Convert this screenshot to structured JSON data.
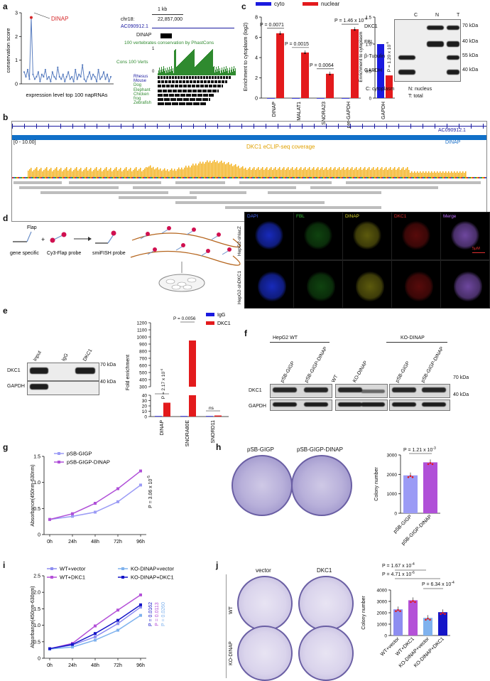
{
  "panels": {
    "a": {
      "label": "a",
      "ylabel": "conservation score",
      "xlabel": "expression level top 100 napRNAs",
      "highlight": "DINAP",
      "browser": {
        "scale": "1 kb",
        "chrom": "chr18:",
        "coord": "22,857,000",
        "gene": "AC090912.1",
        "transcript": "DINAP",
        "track_title": "100 vertebrates conservation by PhastCons",
        "track_name": "Cons 100 Verts",
        "ytick_top": "1",
        "ytick_bottom": "0",
        "species": [
          "Rhesus",
          "Mouse",
          "Dog",
          "Elephant",
          "Chicken",
          "frog",
          "Zebrafish"
        ]
      }
    },
    "b": {
      "label": "b",
      "gene": "AC090912.1",
      "transcript": "DINAP",
      "range": "[0 - 10.00]",
      "track": "DKC1 eCLIP-seq coverage"
    },
    "c": {
      "label": "c",
      "legend": [
        "cyto",
        "nuclear"
      ],
      "ylabel": "Enrichment to cytoplasm (log2)",
      "ylabel2": "Enrichment to cytoplasm",
      "pvalues": [
        "P = 0.0071",
        "P = 0.0015",
        "P = 0.0064",
        "P = 1.46 x 10",
        "P = 1.20 x 10"
      ],
      "pexp": [
        "-4",
        "-5"
      ],
      "blot_lanes": [
        "C",
        "N",
        "T"
      ],
      "blot_rows": [
        "DKC1",
        "FBL",
        "β-Tubulin",
        "GAPDH"
      ],
      "kda": [
        "70 kDa",
        "40 kDa",
        "55 kDa",
        "40 kDa"
      ],
      "notes": [
        "C: cytoplasm",
        "N: nucleus",
        "T: total"
      ]
    },
    "d": {
      "label": "d",
      "flap": "Flap",
      "plus": "+",
      "steps": [
        "gene specific",
        "Cy3-Flap probe",
        "smiFISH probe"
      ],
      "channels": [
        "DAPI",
        "FBL",
        "DINAP",
        "DKC1",
        "Merge"
      ],
      "rows": [
        "HepG2-shlacZ",
        "HepG2-shDKC1"
      ],
      "scale": "5μM"
    },
    "e": {
      "label": "e",
      "blot_lanes": [
        "Input",
        "IgG",
        "DKC1"
      ],
      "blot_rows": [
        "DKC1",
        "GAPDH"
      ],
      "kda": [
        "70 kDa",
        "40 kDa"
      ],
      "legend": [
        "IgG",
        "DKC1"
      ],
      "ylabel": "Fold enrichment",
      "pvalues": [
        "P = 2.17 x 10",
        "P = 0.0056",
        "ns"
      ],
      "pexp": [
        "-4"
      ]
    },
    "f": {
      "label": "f",
      "groups": [
        "HepG2 WT",
        "KO-DINAP"
      ],
      "lanes": [
        "pSB-GIGP",
        "pSB-GIGP-DINAP",
        "WT",
        "KO-DINAP",
        "pSB-GIGP",
        "pSB-GIGP-DINAP"
      ],
      "rows": [
        "DKC1",
        "GAPDH"
      ],
      "kda": [
        "70 kDa",
        "40 kDa"
      ]
    },
    "g": {
      "label": "g",
      "ylabel": "Absorbance(450nm-630nm)",
      "pvalue": "P = 3.06 x 10",
      "pexp": "-5"
    },
    "h": {
      "label": "h",
      "dishes": [
        "pSB-GIGP",
        "pSB-GIGP-DINAP"
      ],
      "ylabel": "Colony number",
      "pvalue": "P = 1.21 x 10",
      "pexp": "-3"
    },
    "i": {
      "label": "i",
      "ylabel": "Absorbance(450nm-630nm)",
      "pvalues": [
        "P = 0.0162",
        "P = 0.0113",
        "P = 0.0260"
      ]
    },
    "j": {
      "label": "j",
      "cols": [
        "vector",
        "DKC1"
      ],
      "rows": [
        "WT",
        "KO-DINAP"
      ],
      "ylabel": "Colony number",
      "pvalues": [
        "P = 1.67 x 10",
        "P = 4.71 x 10",
        "P = 6.34 x 10"
      ],
      "pexp": [
        "-4",
        "-6",
        "-4"
      ]
    }
  },
  "colors": {
    "cyto": "#1a1adf",
    "nuclear": "#e31a1c",
    "igg": "#1a1adf",
    "dkc1": "#e31a1c",
    "gigp": "#9b9bf5",
    "gigp_dinap": "#b050d8",
    "wt_vector": "#8d8df0",
    "wt_dkc1": "#b451d8",
    "ko_vector": "#7fb2ee",
    "ko_dkc1": "#1515c8",
    "cons_track": "#2f8a2f",
    "eclip": "#f3b21f",
    "gene": "#1a1aa0"
  },
  "chart_data": [
    {
      "id": "a-left",
      "type": "line",
      "title": "",
      "xlabel": "expression level top 100 napRNAs",
      "ylabel": "conservation score",
      "ylim": [
        0,
        3
      ],
      "yticks": [
        "0",
        "1",
        "2",
        "3"
      ],
      "x": [
        1,
        2,
        3,
        4,
        5,
        6,
        7,
        8,
        9,
        10,
        11,
        12,
        13,
        14,
        15,
        16,
        17,
        18,
        19,
        20,
        21,
        22,
        23,
        24,
        25,
        26,
        27,
        28,
        29,
        30,
        31,
        32,
        33,
        34,
        35,
        36,
        37,
        38,
        39,
        40,
        41,
        42,
        43,
        44,
        45,
        46,
        47,
        48,
        49,
        50
      ],
      "values": [
        0.5,
        0.3,
        0.6,
        0.2,
        2.8,
        0.4,
        0.2,
        0.3,
        0.5,
        0.1,
        0.4,
        0.3,
        0.6,
        0.2,
        0.3,
        0.1,
        0.5,
        0.3,
        0.2,
        0.7,
        0.3,
        0.2,
        0.4,
        0.1,
        0.3,
        0.5,
        0.2,
        0.3,
        0.1,
        0.6,
        0.2,
        0.4,
        0.3,
        0.8,
        0.2,
        0.1,
        0.3,
        0.5,
        0.2,
        0.4,
        0.3,
        0.1,
        0.6,
        0.2,
        0.3,
        0.5,
        0.2,
        0.4,
        0.1,
        0.3
      ]
    },
    {
      "id": "c-1",
      "type": "bar",
      "categories": [
        "DINAP",
        "MALAT1",
        "SNORA23",
        "pre-GAPDH"
      ],
      "series": [
        {
          "name": "cyto",
          "values": [
            0,
            0,
            0,
            0
          ]
        },
        {
          "name": "nuclear",
          "values": [
            6.4,
            4.5,
            2.4,
            6.8
          ]
        }
      ],
      "ylim": [
        0,
        8
      ],
      "yticks": [
        "0",
        "2",
        "4",
        "6",
        "8"
      ],
      "ylabel": "Enrichment to cytoplasm (log2)"
    },
    {
      "id": "c-2",
      "type": "bar",
      "categories": [
        "GAPDH"
      ],
      "series": [
        {
          "name": "cyto",
          "values": [
            1.0
          ]
        },
        {
          "name": "nuclear",
          "values": [
            0.42
          ]
        }
      ],
      "ylim": [
        0,
        1.5
      ],
      "yticks": [
        "0",
        "0.5",
        "1.0",
        "1.5"
      ],
      "ylabel": "Enrichment to cytoplasm"
    },
    {
      "id": "e",
      "type": "bar",
      "categories": [
        "DINAP",
        "SNORA80E",
        "SNORD11"
      ],
      "series": [
        {
          "name": "IgG",
          "values": [
            1,
            1,
            1
          ]
        },
        {
          "name": "DKC1",
          "values": [
            26,
            950,
            2
          ]
        }
      ],
      "broken_axis": true,
      "yticks_low": [
        "0",
        "10",
        "20",
        "30",
        "40"
      ],
      "yticks_high": [
        "300",
        "400",
        "500",
        "600",
        "700",
        "800",
        "900",
        "1000",
        "1100",
        "1200"
      ],
      "ylabel": "Fold enrichment"
    },
    {
      "id": "g",
      "type": "line",
      "categories": [
        "0h",
        "24h",
        "48h",
        "72h",
        "96h"
      ],
      "series": [
        {
          "name": "pSB-GIGP",
          "values": [
            0.29,
            0.35,
            0.43,
            0.63,
            0.95
          ]
        },
        {
          "name": "pSB-GIGP-DINAP",
          "values": [
            0.29,
            0.4,
            0.6,
            0.88,
            1.22
          ]
        }
      ],
      "ylim": [
        0,
        1.5
      ],
      "yticks": [
        "0",
        "0.5",
        "1.0",
        "1.5"
      ],
      "ylabel": "Absorbance(450nm-630nm)"
    },
    {
      "id": "h",
      "type": "bar",
      "categories": [
        "pSB-GIGP",
        "pSB-GIGP-DINAP"
      ],
      "values": [
        1950,
        2620
      ],
      "ylim": [
        0,
        3000
      ],
      "yticks": [
        "0",
        "1000",
        "2000",
        "3000"
      ],
      "ylabel": "Colony number"
    },
    {
      "id": "i",
      "type": "line",
      "categories": [
        "0h",
        "24h",
        "48h",
        "72h",
        "96h"
      ],
      "series": [
        {
          "name": "WT+vector",
          "values": [
            0.29,
            0.4,
            0.65,
            1.05,
            1.55
          ]
        },
        {
          "name": "WT+DKC1",
          "values": [
            0.29,
            0.45,
            0.98,
            1.46,
            1.92
          ]
        },
        {
          "name": "KO-DINAP+vector",
          "values": [
            0.28,
            0.34,
            0.55,
            0.85,
            1.3
          ]
        },
        {
          "name": "KO-DINAP+DKC1",
          "values": [
            0.29,
            0.42,
            0.75,
            1.15,
            1.62
          ]
        }
      ],
      "ylim": [
        0,
        2.5
      ],
      "yticks": [
        "0",
        "0.5",
        "1.0",
        "1.5",
        "2.0",
        "2.5"
      ],
      "ylabel": "Absorbance(450nm-630nm)"
    },
    {
      "id": "j",
      "type": "bar",
      "categories": [
        "WT+vector",
        "WT+DKC1",
        "KO-DINAP+vector",
        "KO-DINAP+DKC1"
      ],
      "values": [
        2300,
        3100,
        1550,
        2050
      ],
      "ylim": [
        0,
        4000
      ],
      "yticks": [
        "0",
        "1000",
        "2000",
        "3000",
        "4000"
      ],
      "ylabel": "Colony number"
    }
  ]
}
